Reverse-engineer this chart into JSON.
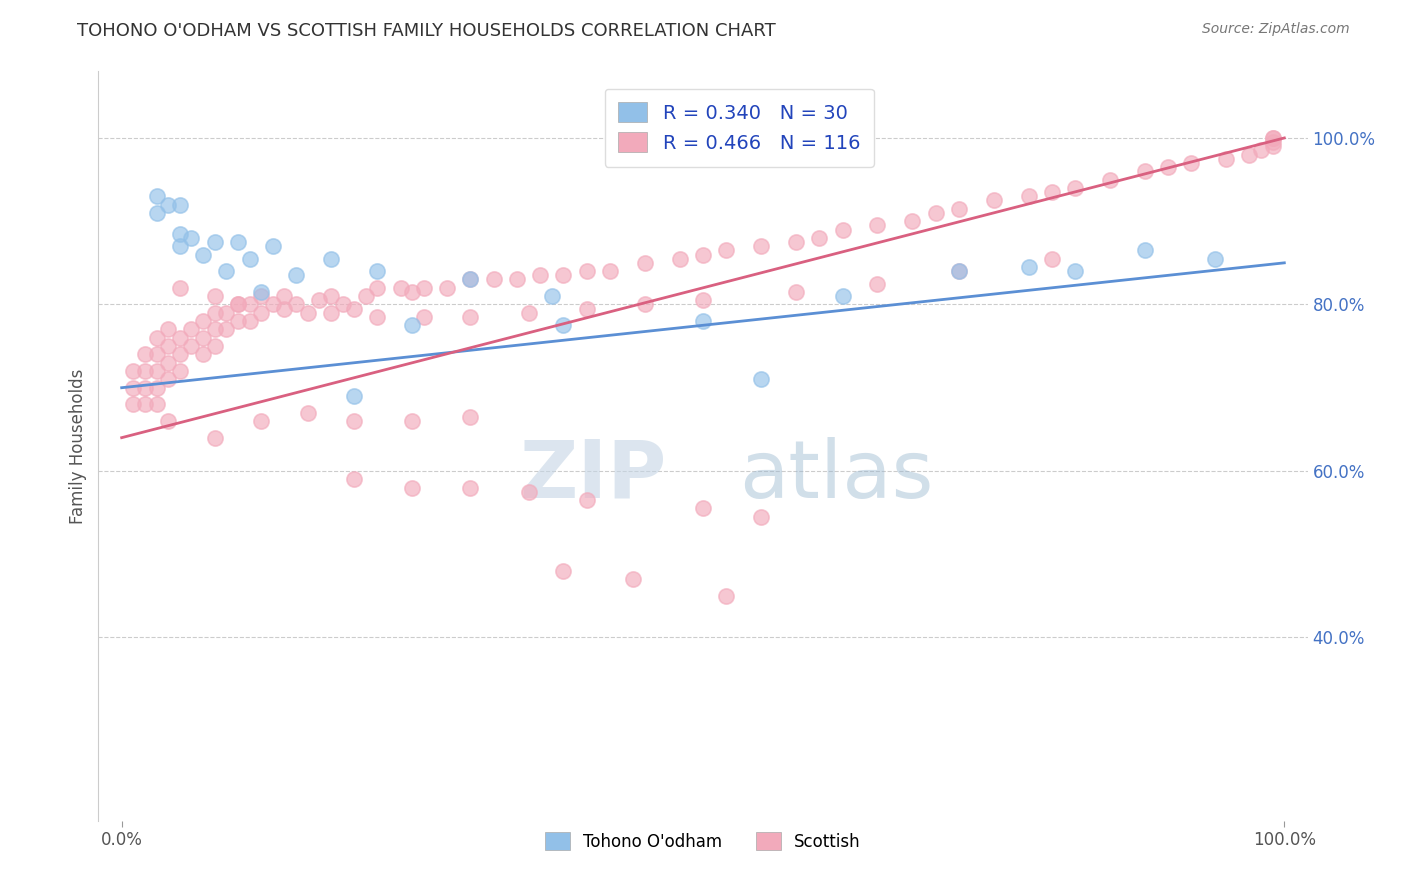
{
  "title": "TOHONO O'ODHAM VS SCOTTISH FAMILY HOUSEHOLDS CORRELATION CHART",
  "source": "Source: ZipAtlas.com",
  "ylabel": "Family Households",
  "xlim": [
    -0.02,
    1.02
  ],
  "ylim": [
    0.18,
    1.08
  ],
  "xtick_positions": [
    0.0,
    1.0
  ],
  "xtick_labels": [
    "0.0%",
    "100.0%"
  ],
  "ytick_vals": [
    0.4,
    0.6,
    0.8,
    1.0
  ],
  "ytick_labels": [
    "40.0%",
    "60.0%",
    "80.0%",
    "100.0%"
  ],
  "blue_R": 0.34,
  "blue_N": 30,
  "pink_R": 0.466,
  "pink_N": 116,
  "blue_color": "#92C0E8",
  "pink_color": "#F2AABB",
  "blue_line_color": "#5B8FD4",
  "pink_line_color": "#D96080",
  "blue_line_x0": 0.0,
  "blue_line_y0": 0.7,
  "blue_line_x1": 1.0,
  "blue_line_y1": 0.85,
  "pink_line_x0": 0.0,
  "pink_line_y0": 0.64,
  "pink_line_x1": 1.0,
  "pink_line_y1": 1.0,
  "legend_blue_label": "Tohono O'odham",
  "legend_pink_label": "Scottish",
  "watermark_zip": "ZIP",
  "watermark_atlas": "atlas",
  "blue_x": [
    0.03,
    0.03,
    0.04,
    0.05,
    0.05,
    0.06,
    0.07,
    0.08,
    0.09,
    0.1,
    0.11,
    0.13,
    0.15,
    0.18,
    0.22,
    0.25,
    0.3,
    0.37,
    0.5,
    0.62,
    0.72,
    0.78,
    0.82,
    0.88,
    0.94,
    0.05,
    0.12,
    0.2,
    0.38,
    0.55
  ],
  "blue_y": [
    0.93,
    0.91,
    0.92,
    0.885,
    0.87,
    0.88,
    0.86,
    0.875,
    0.84,
    0.875,
    0.855,
    0.87,
    0.835,
    0.855,
    0.84,
    0.775,
    0.83,
    0.81,
    0.78,
    0.81,
    0.84,
    0.845,
    0.84,
    0.865,
    0.855,
    0.92,
    0.815,
    0.69,
    0.775,
    0.71
  ],
  "pink_x": [
    0.01,
    0.01,
    0.01,
    0.02,
    0.02,
    0.02,
    0.02,
    0.03,
    0.03,
    0.03,
    0.03,
    0.03,
    0.04,
    0.04,
    0.04,
    0.04,
    0.05,
    0.05,
    0.05,
    0.06,
    0.06,
    0.07,
    0.07,
    0.07,
    0.08,
    0.08,
    0.08,
    0.09,
    0.09,
    0.1,
    0.1,
    0.11,
    0.11,
    0.12,
    0.12,
    0.13,
    0.14,
    0.15,
    0.16,
    0.17,
    0.18,
    0.19,
    0.2,
    0.21,
    0.22,
    0.24,
    0.25,
    0.26,
    0.28,
    0.3,
    0.32,
    0.34,
    0.36,
    0.38,
    0.4,
    0.42,
    0.45,
    0.48,
    0.5,
    0.52,
    0.55,
    0.58,
    0.6,
    0.62,
    0.65,
    0.68,
    0.7,
    0.72,
    0.75,
    0.78,
    0.8,
    0.82,
    0.85,
    0.88,
    0.9,
    0.92,
    0.95,
    0.97,
    0.98,
    0.99,
    0.99,
    0.99,
    0.99,
    0.04,
    0.08,
    0.12,
    0.16,
    0.2,
    0.25,
    0.3,
    0.2,
    0.25,
    0.3,
    0.35,
    0.4,
    0.5,
    0.55,
    0.38,
    0.44,
    0.52,
    0.05,
    0.08,
    0.1,
    0.14,
    0.18,
    0.22,
    0.26,
    0.3,
    0.35,
    0.4,
    0.45,
    0.5,
    0.58,
    0.65,
    0.72,
    0.8
  ],
  "pink_y": [
    0.72,
    0.7,
    0.68,
    0.74,
    0.72,
    0.7,
    0.68,
    0.76,
    0.74,
    0.72,
    0.7,
    0.68,
    0.77,
    0.75,
    0.73,
    0.71,
    0.76,
    0.74,
    0.72,
    0.77,
    0.75,
    0.78,
    0.76,
    0.74,
    0.79,
    0.77,
    0.75,
    0.79,
    0.77,
    0.8,
    0.78,
    0.8,
    0.78,
    0.81,
    0.79,
    0.8,
    0.81,
    0.8,
    0.79,
    0.805,
    0.81,
    0.8,
    0.795,
    0.81,
    0.82,
    0.82,
    0.815,
    0.82,
    0.82,
    0.83,
    0.83,
    0.83,
    0.835,
    0.835,
    0.84,
    0.84,
    0.85,
    0.855,
    0.86,
    0.865,
    0.87,
    0.875,
    0.88,
    0.89,
    0.895,
    0.9,
    0.91,
    0.915,
    0.925,
    0.93,
    0.935,
    0.94,
    0.95,
    0.96,
    0.965,
    0.97,
    0.975,
    0.98,
    0.985,
    0.99,
    0.995,
    1.0,
    1.0,
    0.66,
    0.64,
    0.66,
    0.67,
    0.66,
    0.66,
    0.665,
    0.59,
    0.58,
    0.58,
    0.575,
    0.565,
    0.555,
    0.545,
    0.48,
    0.47,
    0.45,
    0.82,
    0.81,
    0.8,
    0.795,
    0.79,
    0.785,
    0.785,
    0.785,
    0.79,
    0.795,
    0.8,
    0.805,
    0.815,
    0.825,
    0.84,
    0.855
  ]
}
